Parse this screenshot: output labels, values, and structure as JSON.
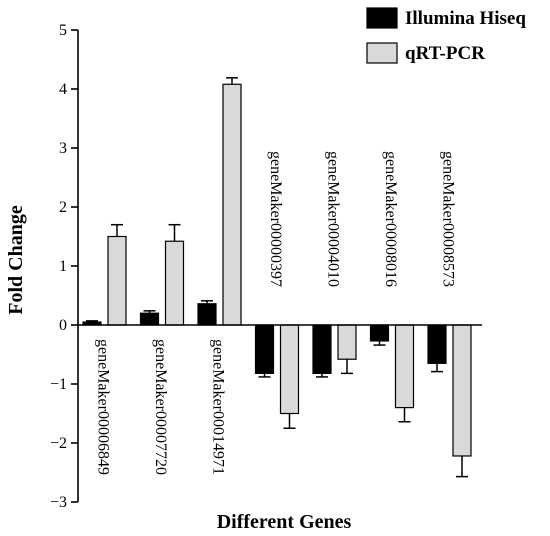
{
  "chart_data": {
    "type": "bar",
    "xlabel": "Different Genes",
    "ylabel": "Fold Change",
    "ylim": [
      -3,
      5
    ],
    "yticks": [
      -3,
      -2,
      -1,
      0,
      1,
      2,
      3,
      4,
      5
    ],
    "ytick_labels": [
      "−3",
      "−2",
      "−1",
      "0",
      "1",
      "2",
      "3",
      "4",
      "5"
    ],
    "grid": false,
    "legend_position": "top-right",
    "categories": [
      "geneMaker00006849",
      "geneMaker00007720",
      "geneMaker00014971",
      "geneMaker00000397",
      "geneMaker00004010",
      "geneMaker00008016",
      "geneMaker00008573"
    ],
    "series": [
      {
        "name": "Illumina Hiseq",
        "color": "#000000",
        "values": [
          0.05,
          0.2,
          0.36,
          -0.82,
          -0.82,
          -0.27,
          -0.65
        ],
        "errors": [
          0.02,
          0.04,
          0.05,
          0.06,
          0.06,
          0.07,
          0.14
        ]
      },
      {
        "name": "qRT-PCR",
        "color": "#d9d9d9",
        "values": [
          1.5,
          1.42,
          4.08,
          -1.5,
          -0.58,
          -1.4,
          -2.22
        ],
        "errors": [
          0.2,
          0.28,
          0.11,
          0.25,
          0.24,
          0.24,
          0.35
        ]
      }
    ]
  }
}
